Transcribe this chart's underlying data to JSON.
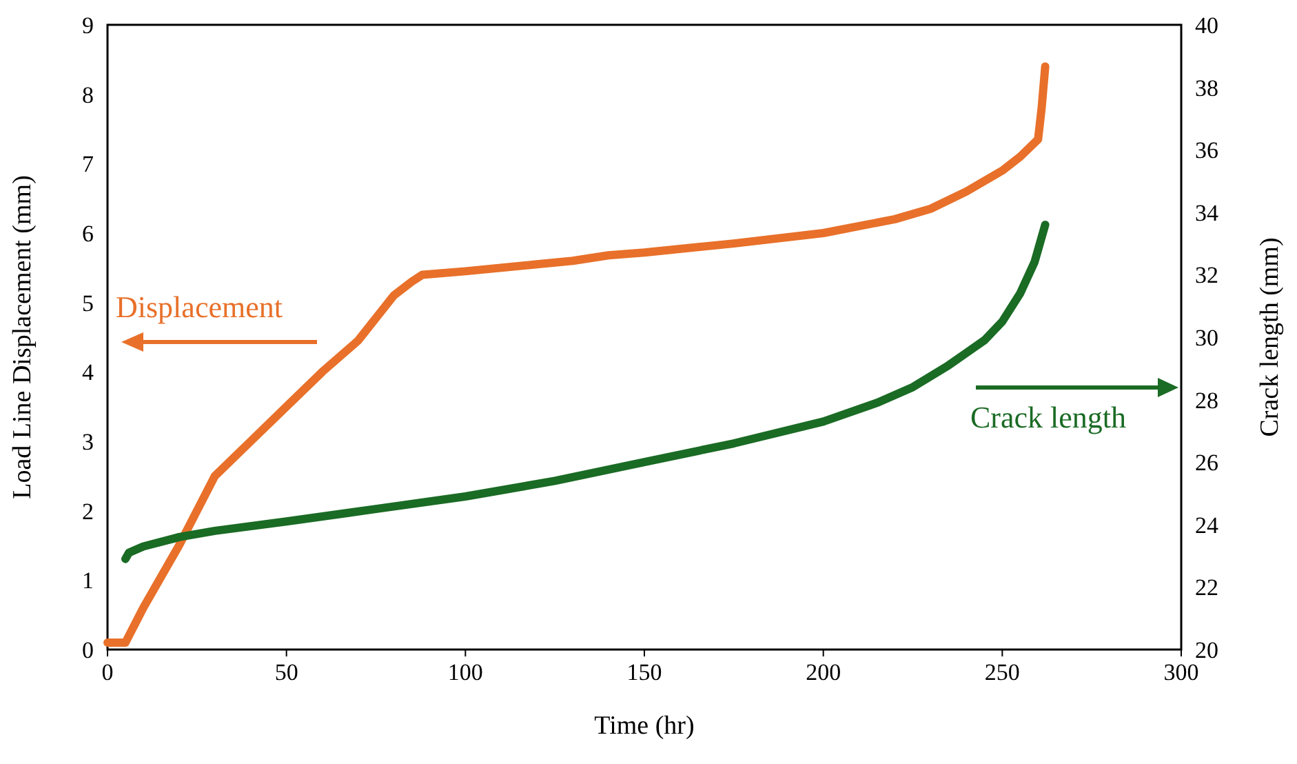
{
  "chart_data": {
    "type": "line",
    "xlabel": "Time (hr)",
    "ylabel": "Load Line Displacement (mm)",
    "y2label": "Crack length (mm)",
    "xlim": [
      0,
      300
    ],
    "xticks": [
      0,
      50,
      100,
      150,
      200,
      250,
      300
    ],
    "ylim": [
      0,
      9
    ],
    "yticks": [
      0,
      1,
      2,
      3,
      4,
      5,
      6,
      7,
      8,
      9
    ],
    "y2lim": [
      20,
      40
    ],
    "y2ticks": [
      20,
      22,
      24,
      26,
      28,
      30,
      32,
      34,
      36,
      38,
      40
    ],
    "grid": false,
    "marker": "none",
    "line_style": "solid",
    "annotations": [
      "Displacement",
      "Crack length"
    ],
    "series": [
      {
        "color": "#e8702a",
        "x": [
          0,
          5,
          10,
          20,
          30,
          40,
          50,
          60,
          70,
          80,
          85,
          88,
          100,
          120,
          130,
          140,
          150,
          175,
          200,
          210,
          220,
          230,
          240,
          250,
          255,
          260,
          261,
          262
        ],
        "values": [
          0.1,
          0.1,
          0.6,
          1.5,
          2.5,
          3.0,
          3.5,
          4.0,
          4.45,
          5.1,
          5.3,
          5.4,
          5.45,
          5.55,
          5.6,
          5.68,
          5.72,
          5.85,
          6.0,
          6.1,
          6.2,
          6.35,
          6.6,
          6.9,
          7.1,
          7.35,
          7.8,
          8.4
        ]
      },
      {
        "color": "#1a6b24",
        "axis": "y2",
        "x": [
          5,
          6,
          10,
          20,
          30,
          50,
          75,
          100,
          125,
          150,
          175,
          200,
          215,
          225,
          235,
          245,
          250,
          255,
          259,
          262
        ],
        "values": [
          22.9,
          23.1,
          23.3,
          23.6,
          23.8,
          24.1,
          24.5,
          24.9,
          25.4,
          26.0,
          26.6,
          27.3,
          27.9,
          28.4,
          29.1,
          29.9,
          30.5,
          31.4,
          32.4,
          33.6
        ]
      }
    ]
  }
}
